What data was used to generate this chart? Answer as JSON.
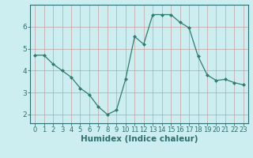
{
  "x": [
    0,
    1,
    2,
    3,
    4,
    5,
    6,
    7,
    8,
    9,
    10,
    11,
    12,
    13,
    14,
    15,
    16,
    17,
    18,
    19,
    20,
    21,
    22,
    23
  ],
  "y": [
    4.7,
    4.7,
    4.3,
    4.0,
    3.7,
    3.2,
    2.9,
    2.35,
    2.0,
    2.2,
    3.6,
    5.55,
    5.2,
    6.55,
    6.55,
    6.55,
    6.2,
    5.95,
    4.65,
    3.8,
    3.55,
    3.6,
    3.45,
    3.35
  ],
  "line_color": "#2e7d6e",
  "marker": "D",
  "marker_size": 2.0,
  "xlabel": "Humidex (Indice chaleur)",
  "xlabel_fontsize": 7.5,
  "bg_color": "#cceef0",
  "grid_color": "#c8a0a0",
  "axis_color": "#2e6e6e",
  "yticks": [
    2,
    3,
    4,
    5,
    6
  ],
  "xticks": [
    0,
    1,
    2,
    3,
    4,
    5,
    6,
    7,
    8,
    9,
    10,
    11,
    12,
    13,
    14,
    15,
    16,
    17,
    18,
    19,
    20,
    21,
    22,
    23
  ],
  "ylim": [
    1.6,
    7.0
  ],
  "xlim": [
    -0.5,
    23.5
  ],
  "tick_fontsize": 6.0
}
